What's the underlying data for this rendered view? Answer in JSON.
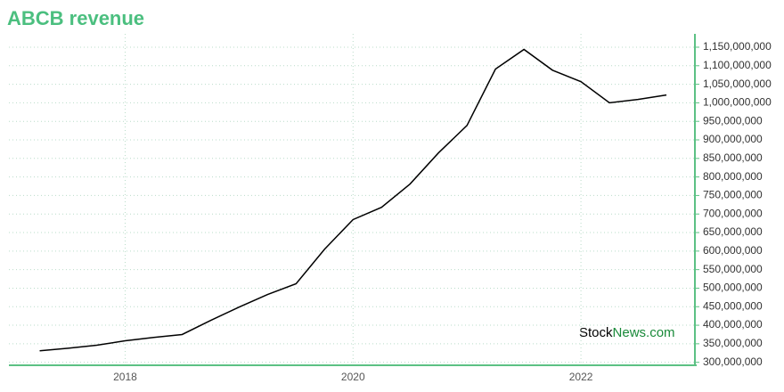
{
  "chart_data": {
    "type": "line",
    "title": "ABCB revenue",
    "watermark": [
      "Stock",
      "News.com"
    ],
    "x": [
      2017.25,
      2017.5,
      2017.75,
      2018.0,
      2018.25,
      2018.5,
      2018.75,
      2019.0,
      2019.25,
      2019.5,
      2019.75,
      2020.0,
      2020.25,
      2020.5,
      2020.75,
      2021.0,
      2021.25,
      2021.5,
      2021.75,
      2022.0,
      2022.25,
      2022.5,
      2022.75
    ],
    "series": [
      {
        "color": "#000000",
        "values": [
          331000000,
          338000000,
          346000000,
          358000000,
          367000000,
          375000000,
          413000000,
          449000000,
          483000000,
          512000000,
          605000000,
          685000000,
          718000000,
          781000000,
          865000000,
          939000000,
          1091000000,
          1144000000,
          1088000000,
          1057000000,
          1000000000,
          1009000000,
          1021000000
        ]
      }
    ],
    "xlim": [
      2016.98,
      2023.0
    ],
    "xticks": [
      2018,
      2020,
      2022
    ],
    "ylim": [
      292000000,
      1186000000
    ],
    "yticks": [
      {
        "value": 300000000,
        "label": "300,000,000"
      },
      {
        "value": 350000000,
        "label": "350,000,000"
      },
      {
        "value": 400000000,
        "label": "400,000,000"
      },
      {
        "value": 450000000,
        "label": "450,000,000"
      },
      {
        "value": 500000000,
        "label": "500,000,000"
      },
      {
        "value": 550000000,
        "label": "550,000,000"
      },
      {
        "value": 600000000,
        "label": "600,000,000"
      },
      {
        "value": 650000000,
        "label": "650,000,000"
      },
      {
        "value": 700000000,
        "label": "700,000,000"
      },
      {
        "value": 750000000,
        "label": "750,000,000"
      },
      {
        "value": 800000000,
        "label": "800,000,000"
      },
      {
        "value": 850000000,
        "label": "850,000,000"
      },
      {
        "value": 900000000,
        "label": "900,000,000"
      },
      {
        "value": 950000000,
        "label": "950,000,000"
      },
      {
        "value": 1000000000,
        "label": "1,000,000,000"
      },
      {
        "value": 1050000000,
        "label": "1,050,000,000"
      },
      {
        "value": 1100000000,
        "label": "1,100,000,000"
      },
      {
        "value": 1150000000,
        "label": "1,150,000,000"
      }
    ],
    "grid": true,
    "axis_color": "#5cc184"
  }
}
